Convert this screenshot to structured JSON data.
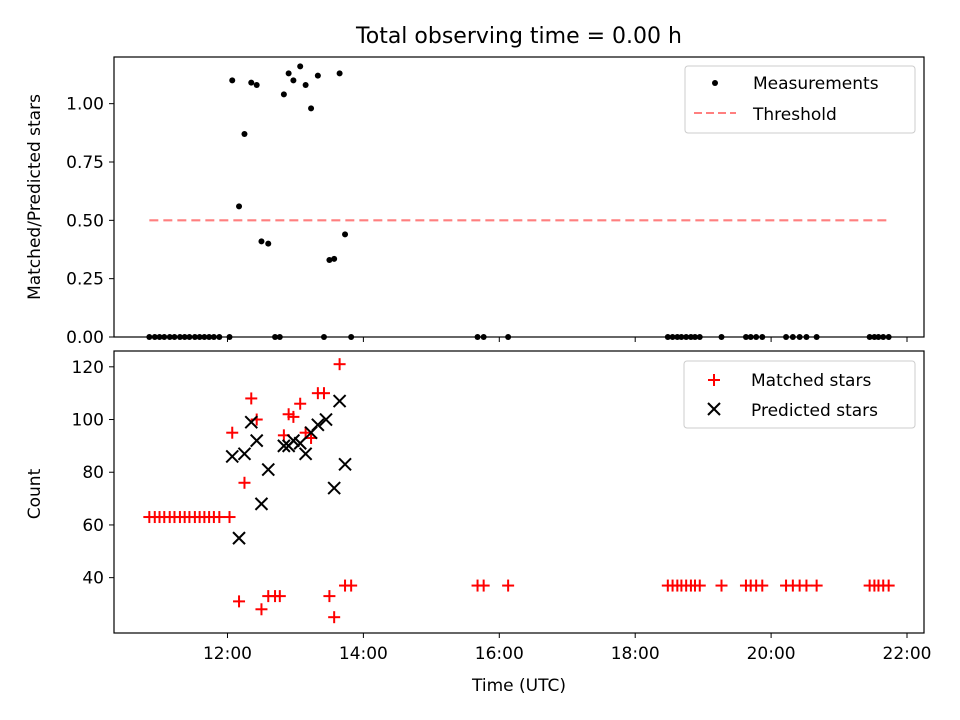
{
  "figure_title": "Total observing time = 0.00 h",
  "colors": {
    "measurement": "#000000",
    "threshold": "#ff7f7f",
    "matched": "#ff0000",
    "predicted": "#000000"
  },
  "x_tick_labels": [
    "12:00",
    "14:00",
    "16:00",
    "18:00",
    "20:00",
    "22:00"
  ],
  "chart_data": [
    {
      "type": "scatter",
      "title": "Total observing time = 0.00 h",
      "xlabel": "",
      "ylabel": "Matched/Predicted stars",
      "x_unit": "hours UTC",
      "xlim": [
        10.33,
        22.25
      ],
      "ylim": [
        0,
        1.2
      ],
      "yticks": [
        "0.00",
        "0.25",
        "0.50",
        "0.75",
        "1.00"
      ],
      "legend": {
        "placement": "top-right",
        "entries": [
          "Measurements",
          "Threshold"
        ]
      },
      "series": [
        {
          "name": "Measurements",
          "marker": "dot",
          "points": [
            [
              10.85,
              0
            ],
            [
              10.93,
              0
            ],
            [
              11.0,
              0
            ],
            [
              11.07,
              0
            ],
            [
              11.15,
              0
            ],
            [
              11.22,
              0
            ],
            [
              11.3,
              0
            ],
            [
              11.37,
              0
            ],
            [
              11.44,
              0
            ],
            [
              11.52,
              0
            ],
            [
              11.59,
              0
            ],
            [
              11.66,
              0
            ],
            [
              11.73,
              0
            ],
            [
              11.8,
              0
            ],
            [
              11.88,
              0
            ],
            [
              12.03,
              0
            ],
            [
              12.07,
              1.1
            ],
            [
              12.17,
              0.56
            ],
            [
              12.25,
              0.87
            ],
            [
              12.35,
              1.09
            ],
            [
              12.43,
              1.08
            ],
            [
              12.5,
              0.41
            ],
            [
              12.6,
              0.4
            ],
            [
              12.7,
              0
            ],
            [
              12.77,
              0
            ],
            [
              12.83,
              1.04
            ],
            [
              12.9,
              1.13
            ],
            [
              12.97,
              1.1
            ],
            [
              13.07,
              1.16
            ],
            [
              13.15,
              1.08
            ],
            [
              13.23,
              0.98
            ],
            [
              13.33,
              1.12
            ],
            [
              13.42,
              0
            ],
            [
              13.5,
              0.33
            ],
            [
              13.57,
              0.335
            ],
            [
              13.65,
              1.13
            ],
            [
              13.73,
              0.44
            ],
            [
              13.82,
              0
            ],
            [
              15.68,
              0
            ],
            [
              15.77,
              0
            ],
            [
              16.13,
              0
            ],
            [
              18.48,
              0
            ],
            [
              18.55,
              0
            ],
            [
              18.62,
              0
            ],
            [
              18.68,
              0
            ],
            [
              18.75,
              0
            ],
            [
              18.82,
              0
            ],
            [
              18.88,
              0
            ],
            [
              18.95,
              0
            ],
            [
              19.27,
              0
            ],
            [
              19.63,
              0
            ],
            [
              19.7,
              0
            ],
            [
              19.78,
              0
            ],
            [
              19.87,
              0
            ],
            [
              20.22,
              0
            ],
            [
              20.32,
              0
            ],
            [
              20.42,
              0
            ],
            [
              20.52,
              0
            ],
            [
              20.67,
              0
            ],
            [
              21.45,
              0
            ],
            [
              21.52,
              0
            ],
            [
              21.58,
              0
            ],
            [
              21.65,
              0
            ],
            [
              21.73,
              0
            ]
          ]
        },
        {
          "name": "Threshold",
          "style": "dashed",
          "points": [
            [
              10.85,
              0.5
            ],
            [
              21.75,
              0.5
            ]
          ]
        }
      ]
    },
    {
      "type": "scatter",
      "title": "",
      "xlabel": "Time (UTC)",
      "ylabel": "Count",
      "x_unit": "hours UTC",
      "xlim": [
        10.33,
        22.25
      ],
      "ylim": [
        19,
        126
      ],
      "yticks": [
        "40",
        "60",
        "80",
        "100",
        "120"
      ],
      "legend": {
        "placement": "top-right",
        "entries": [
          "Matched stars",
          "Predicted stars"
        ]
      },
      "series": [
        {
          "name": "Matched stars",
          "marker": "plus",
          "points": [
            [
              10.85,
              63
            ],
            [
              10.93,
              63
            ],
            [
              11.0,
              63
            ],
            [
              11.07,
              63
            ],
            [
              11.15,
              63
            ],
            [
              11.22,
              63
            ],
            [
              11.3,
              63
            ],
            [
              11.37,
              63
            ],
            [
              11.44,
              63
            ],
            [
              11.52,
              63
            ],
            [
              11.59,
              63
            ],
            [
              11.66,
              63
            ],
            [
              11.73,
              63
            ],
            [
              11.8,
              63
            ],
            [
              11.88,
              63
            ],
            [
              12.03,
              63
            ],
            [
              12.07,
              95
            ],
            [
              12.17,
              31
            ],
            [
              12.25,
              76
            ],
            [
              12.35,
              108
            ],
            [
              12.43,
              100
            ],
            [
              12.5,
              28
            ],
            [
              12.6,
              33
            ],
            [
              12.7,
              33
            ],
            [
              12.77,
              33
            ],
            [
              12.83,
              94
            ],
            [
              12.9,
              102
            ],
            [
              12.97,
              101
            ],
            [
              13.07,
              106
            ],
            [
              13.15,
              95
            ],
            [
              13.23,
              93
            ],
            [
              13.33,
              110
            ],
            [
              13.42,
              110
            ],
            [
              13.5,
              33
            ],
            [
              13.57,
              25
            ],
            [
              13.65,
              121
            ],
            [
              13.73,
              37
            ],
            [
              13.82,
              37
            ],
            [
              15.68,
              37
            ],
            [
              15.77,
              37
            ],
            [
              16.13,
              37
            ],
            [
              18.48,
              37
            ],
            [
              18.55,
              37
            ],
            [
              18.62,
              37
            ],
            [
              18.68,
              37
            ],
            [
              18.75,
              37
            ],
            [
              18.82,
              37
            ],
            [
              18.88,
              37
            ],
            [
              18.95,
              37
            ],
            [
              19.27,
              37
            ],
            [
              19.63,
              37
            ],
            [
              19.7,
              37
            ],
            [
              19.78,
              37
            ],
            [
              19.87,
              37
            ],
            [
              20.22,
              37
            ],
            [
              20.32,
              37
            ],
            [
              20.42,
              37
            ],
            [
              20.52,
              37
            ],
            [
              20.67,
              37
            ],
            [
              21.45,
              37
            ],
            [
              21.52,
              37
            ],
            [
              21.58,
              37
            ],
            [
              21.65,
              37
            ],
            [
              21.73,
              37
            ]
          ]
        },
        {
          "name": "Predicted stars",
          "marker": "x",
          "points": [
            [
              12.07,
              86
            ],
            [
              12.17,
              55
            ],
            [
              12.25,
              87
            ],
            [
              12.35,
              99
            ],
            [
              12.43,
              92
            ],
            [
              12.5,
              68
            ],
            [
              12.6,
              81
            ],
            [
              12.83,
              90
            ],
            [
              12.9,
              90
            ],
            [
              12.97,
              92
            ],
            [
              13.07,
              91
            ],
            [
              13.15,
              87
            ],
            [
              13.23,
              95
            ],
            [
              13.33,
              98
            ],
            [
              13.45,
              100
            ],
            [
              13.57,
              74
            ],
            [
              13.65,
              107
            ],
            [
              13.73,
              83
            ]
          ]
        }
      ]
    }
  ]
}
